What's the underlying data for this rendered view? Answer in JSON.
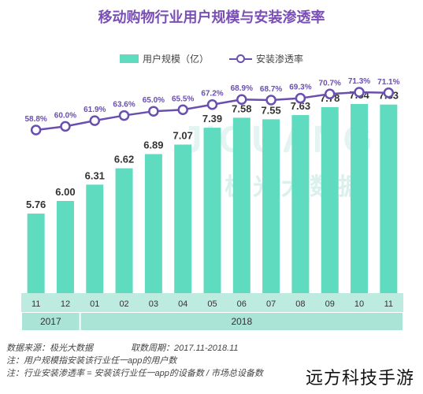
{
  "chart_data": {
    "type": "bar",
    "title": "移动购物行业用户规模与安装渗透率",
    "categories": [
      "11",
      "12",
      "01",
      "02",
      "03",
      "04",
      "05",
      "06",
      "07",
      "08",
      "09",
      "10",
      "11"
    ],
    "year_groups": [
      {
        "label": "2017",
        "count": 2
      },
      {
        "label": "2018",
        "count": 11
      }
    ],
    "series": [
      {
        "name": "用户规模（亿）",
        "type": "bar",
        "values": [
          5.76,
          6.0,
          6.31,
          6.62,
          6.89,
          7.07,
          7.39,
          7.58,
          7.55,
          7.63,
          7.78,
          7.84,
          7.83
        ],
        "labels": [
          "5.76",
          "6.00",
          "6.31",
          "6.62",
          "6.89",
          "7.07",
          "7.39",
          "7.58",
          "7.55",
          "7.63",
          "7.78",
          "7.84",
          "7.83"
        ]
      },
      {
        "name": "安装渗透率",
        "type": "line",
        "values": [
          58.8,
          60.0,
          61.9,
          63.6,
          65.0,
          65.5,
          67.2,
          68.9,
          68.7,
          69.3,
          70.7,
          71.3,
          71.1
        ],
        "labels": [
          "58.8%",
          "60.0%",
          "61.9%",
          "63.6%",
          "65.0%",
          "65.5%",
          "67.2%",
          "68.9%",
          "68.7%",
          "69.3%",
          "70.7%",
          "71.3%",
          "71.1%"
        ]
      }
    ],
    "legend_placement": "top-center",
    "grid": false,
    "colors": {
      "bar": "#5fdcc0",
      "line": "#6a4fb0",
      "title": "#7a4fb6",
      "axis_band": "#bdebe0",
      "year_band": "#a9e4d6"
    }
  },
  "watermark_brand": {
    "word": "JIGUANG",
    "cn": "极光大数据"
  },
  "footnotes": {
    "source": "数据来源：极光大数据",
    "period": "取数周期：2017.11-2018.11",
    "note1": "注：用户规模指安装该行业任一app的用户数",
    "note2": "注：行业安装渗透率 = 安装该行业任一app的设备数 / 市场总设备数"
  },
  "corner_watermark": "远方科技手游"
}
